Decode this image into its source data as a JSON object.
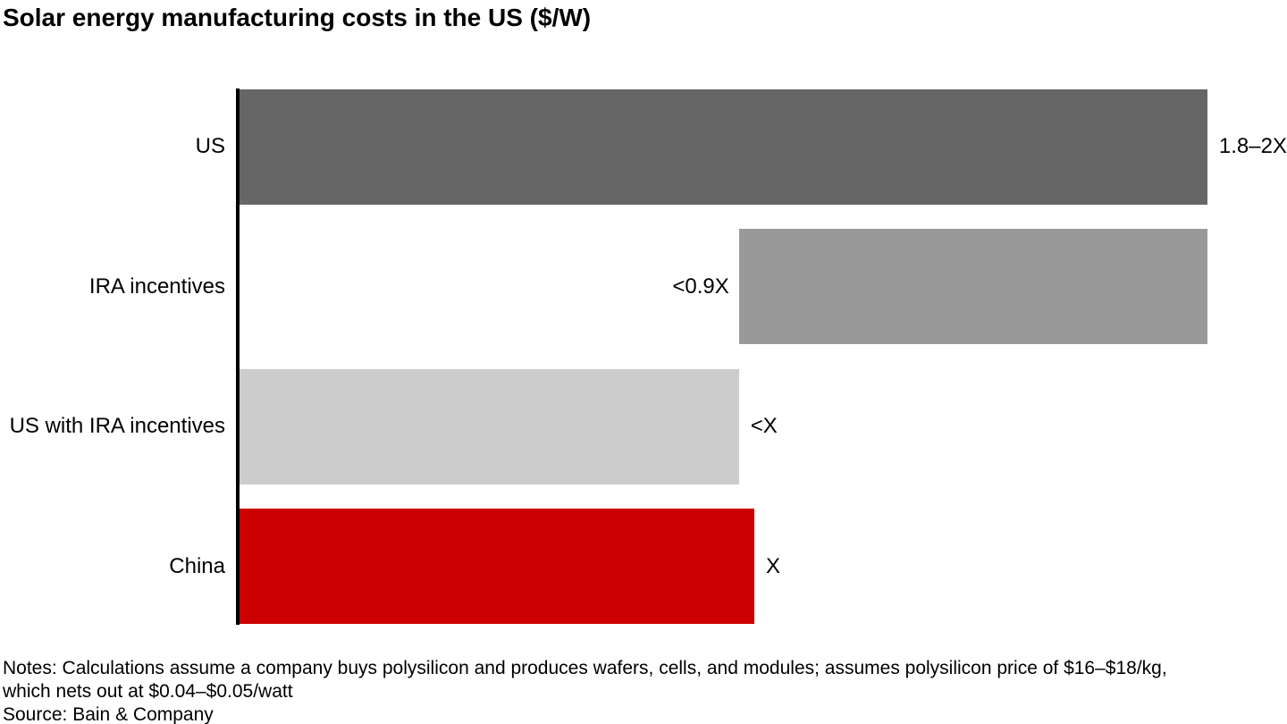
{
  "title": "Solar energy manufacturing costs in the US ($/W)",
  "colors": {
    "us_bar": "#666666",
    "ira_incentives_bar": "#999999",
    "us_with_ira_bar": "#cccccc",
    "china_bar": "#cc0000",
    "axis": "#000000",
    "text": "#000000",
    "background": "#ffffff"
  },
  "chart_data": {
    "type": "bar",
    "orientation": "horizontal",
    "title": "Solar energy manufacturing costs in the US ($/W)",
    "xlabel": "",
    "ylabel": "",
    "xlim": [
      0,
      2.05
    ],
    "grid": false,
    "legend": "none",
    "categories": [
      "US",
      "IRA incentives",
      "US with IRA incentives",
      "China"
    ],
    "bars": [
      {
        "category": "US",
        "value_start": 0,
        "value_end": 1.88,
        "value_label": "1.8–2X",
        "label_side": "right",
        "color": "#666666"
      },
      {
        "category": "IRA incentives",
        "value_start": 0.97,
        "value_end": 1.88,
        "value_label": "<0.9X",
        "label_side": "left",
        "color": "#999999"
      },
      {
        "category": "US with IRA incentives",
        "value_start": 0,
        "value_end": 0.97,
        "value_label": "<X",
        "label_side": "right",
        "color": "#cccccc"
      },
      {
        "category": "China",
        "value_start": 0,
        "value_end": 1.0,
        "value_label": "X",
        "label_side": "right",
        "color": "#cc0000"
      }
    ]
  },
  "notes": {
    "lines": [
      "Notes: Calculations assume a company buys polysilicon and produces wafers, cells, and modules; assumes polysilicon price of $16–$18/kg,",
      "which nets out at $0.04–$0.05/watt",
      "Source: Bain & Company"
    ]
  }
}
